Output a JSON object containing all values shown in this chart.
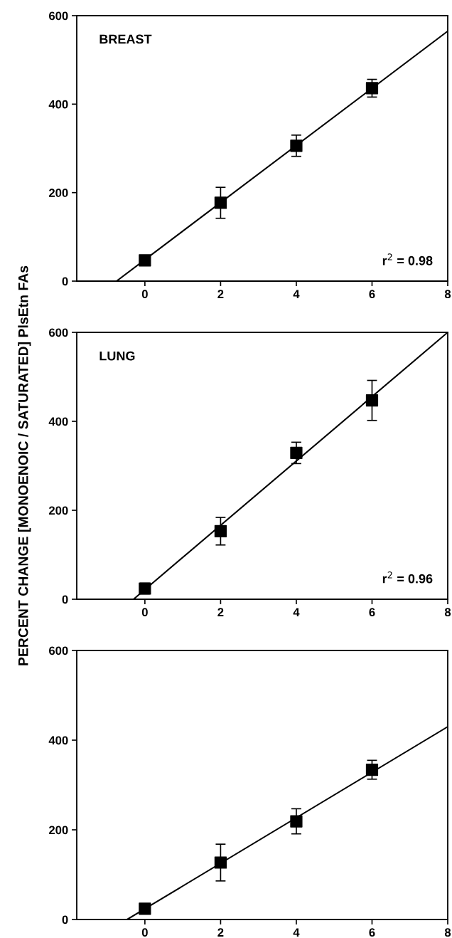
{
  "chart_data": [
    {
      "type": "scatter",
      "ylabel": null,
      "annotations": [
        "BREAST",
        "r$^{2}$ = 0.98"
      ],
      "x": [
        0,
        2,
        4,
        6
      ],
      "xlim": [
        -1.8,
        8
      ],
      "xticks": [
        0,
        2,
        4,
        6,
        8
      ],
      "ylim": [
        0,
        600
      ],
      "yticks": [
        0,
        200,
        400,
        600
      ],
      "grid": false,
      "legend": false,
      "series": [
        {
          "color": "#000000",
          "marker": "square",
          "values": [
            47,
            177,
            306,
            436
          ],
          "errors": [
            null,
            35,
            24,
            20
          ]
        },
        {
          "type": "line",
          "color": "#000000",
          "marker": "none",
          "line_style": "solid",
          "x": [
            -0.75,
            8
          ],
          "values": [
            0,
            565
          ]
        }
      ]
    },
    {
      "type": "scatter",
      "ylabel": "PERCENT CHANGE [MONOENOIC / SATURATED] PlsEtn FAs",
      "annotations": [
        "LUNG",
        "r$^{2}$ = 0.96"
      ],
      "x": [
        0,
        2,
        4,
        6
      ],
      "xlim": [
        -1.8,
        8
      ],
      "xticks": [
        0,
        2,
        4,
        6,
        8
      ],
      "ylim": [
        0,
        600
      ],
      "yticks": [
        0,
        200,
        400,
        600
      ],
      "grid": false,
      "legend": false,
      "series": [
        {
          "color": "#000000",
          "marker": "square",
          "values": [
            24,
            153,
            329,
            447
          ],
          "errors": [
            12,
            31,
            24,
            45
          ]
        },
        {
          "type": "line",
          "color": "#000000",
          "marker": "none",
          "line_style": "solid",
          "x": [
            -0.3,
            8
          ],
          "values": [
            0,
            600
          ]
        }
      ]
    },
    {
      "type": "scatter",
      "x": [
        0,
        2,
        4,
        6
      ],
      "xlim": [
        -1.8,
        8
      ],
      "xticks": [
        0,
        2,
        4,
        6,
        8
      ],
      "ylim": [
        0,
        600
      ],
      "yticks": [
        0,
        200,
        400,
        600
      ],
      "grid": false,
      "legend": false,
      "series": [
        {
          "color": "#000000",
          "marker": "square",
          "values": [
            24,
            127,
            219,
            334
          ],
          "errors": [
            null,
            41,
            28,
            21
          ]
        },
        {
          "type": "line",
          "color": "#000000",
          "marker": "none",
          "line_style": "solid",
          "x": [
            -0.47,
            8
          ],
          "values": [
            0,
            430
          ]
        }
      ]
    }
  ]
}
